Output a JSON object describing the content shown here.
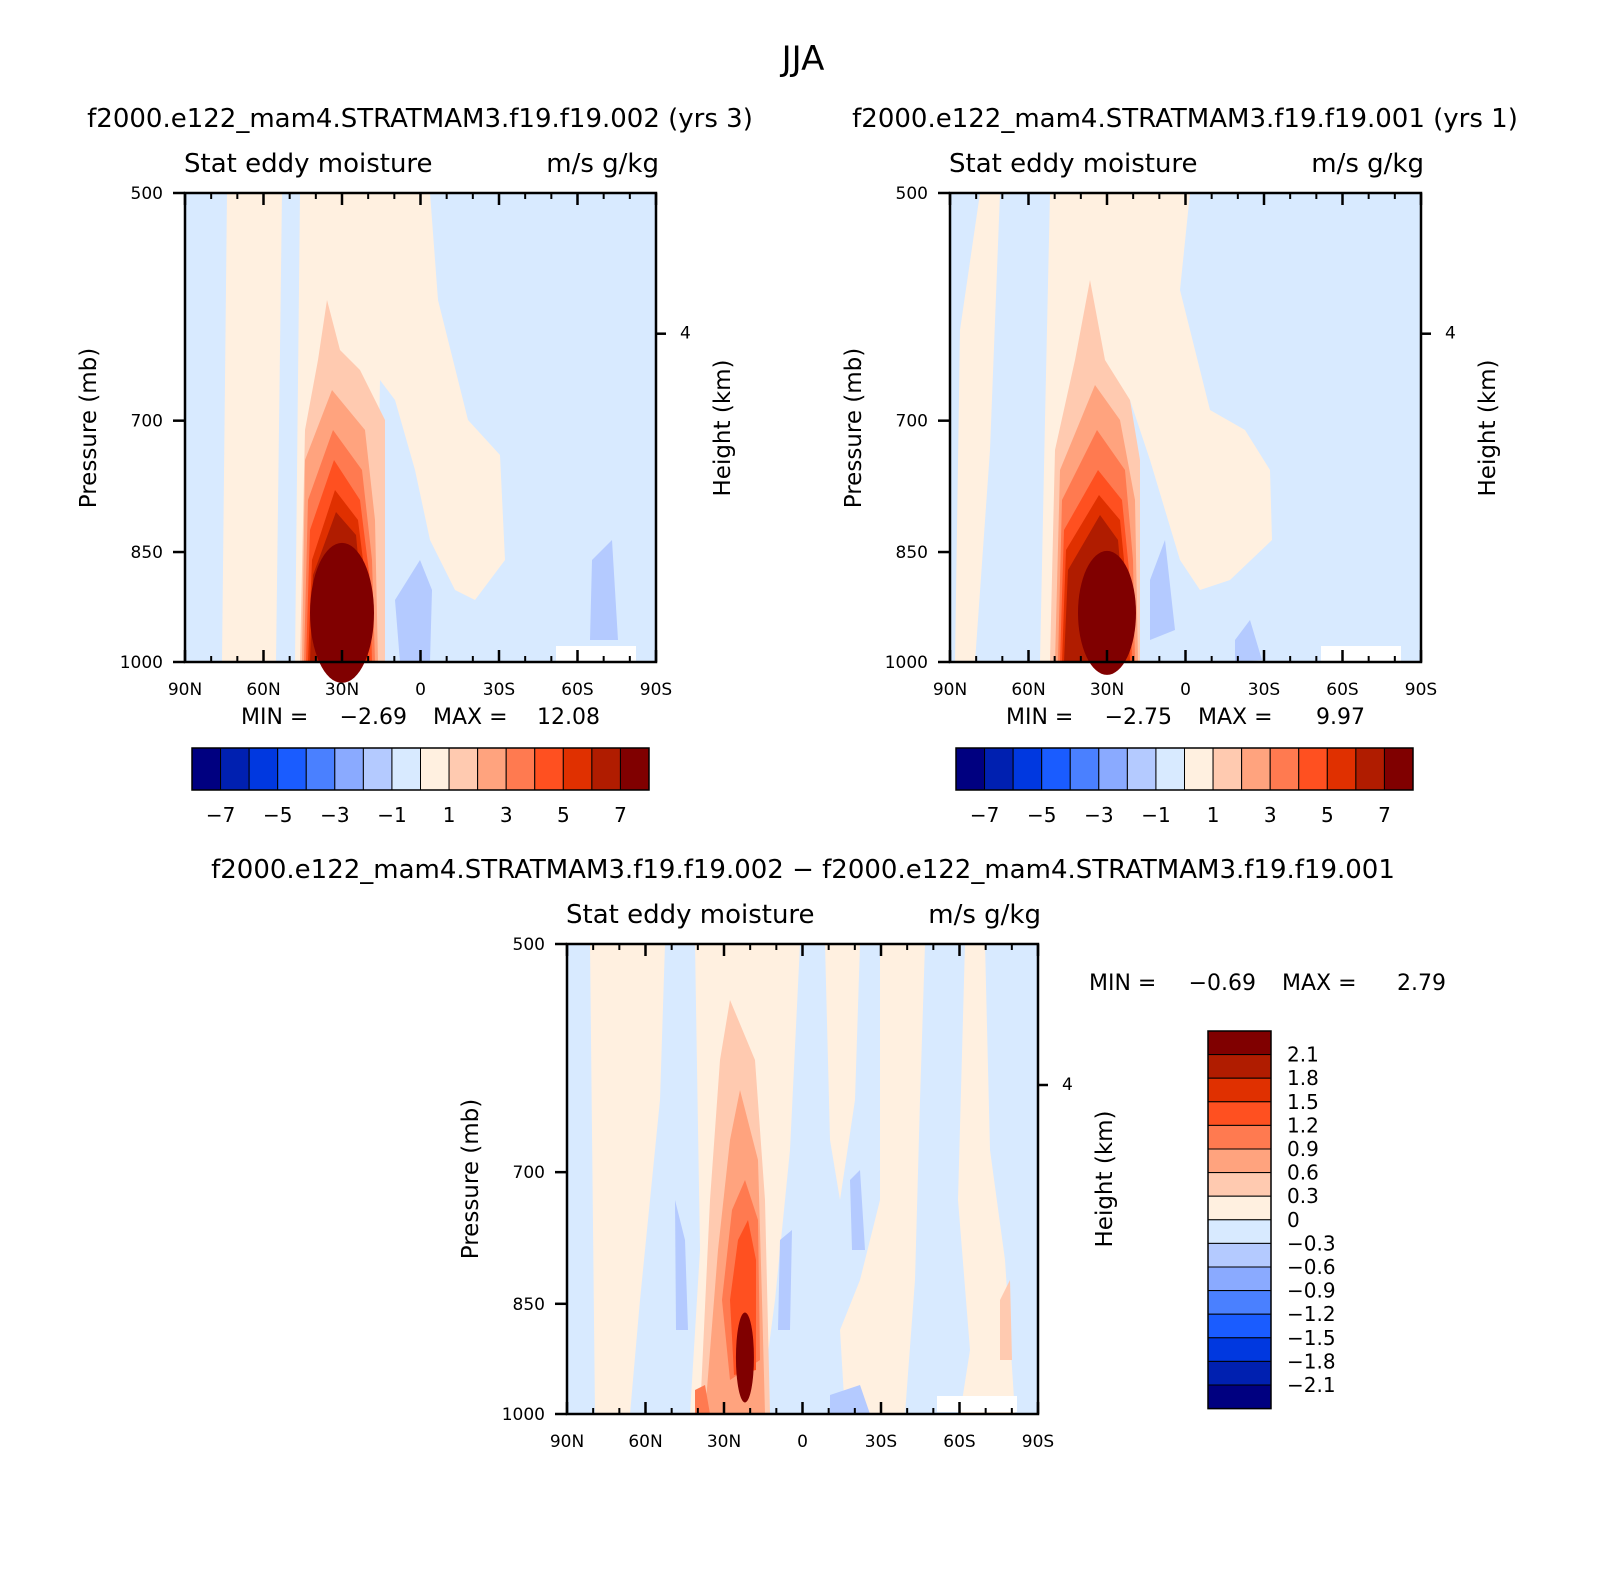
{
  "figure": {
    "season": "JJA",
    "case_a_title": "f2000.e122_mam4.STRATMAM3.f19.f19.002  (yrs  3)",
    "case_b_title": "f2000.e122_mam4.STRATMAM3.f19.f19.001  (yrs  1)",
    "diff_title": "f2000.e122_mam4.STRATMAM3.f19.f19.002  −  f2000.e122_mam4.STRATMAM3.f19.f19.001"
  },
  "chart_data": [
    {
      "id": "panel-a",
      "type": "contour",
      "variable": "Stat  eddy  moisture",
      "units": "m/s  g/kg",
      "xlabel": "",
      "ylabel": "Pressure  (mb)",
      "ylabel_right": "Height  (km)",
      "x_ticks": [
        "90N",
        "60N",
        "30N",
        "0",
        "30S",
        "60S",
        "90S"
      ],
      "y_ticks": [
        "500",
        "700",
        "850",
        "1000"
      ],
      "right_ticks": [
        "4"
      ],
      "xlim": [
        90,
        -90
      ],
      "ylim": [
        500,
        1000
      ],
      "min_label": "MIN  =",
      "min_value": "−2.69",
      "max_label": "MAX  =",
      "max_value": "12.08",
      "max_center": {
        "lat": 30,
        "p": 930
      }
    },
    {
      "id": "panel-b",
      "type": "contour",
      "variable": "Stat  eddy  moisture",
      "units": "m/s  g/kg",
      "xlabel": "",
      "ylabel": "Pressure  (mb)",
      "ylabel_right": "Height  (km)",
      "x_ticks": [
        "90N",
        "60N",
        "30N",
        "0",
        "30S",
        "60S",
        "90S"
      ],
      "y_ticks": [
        "500",
        "700",
        "850",
        "1000"
      ],
      "right_ticks": [
        "4"
      ],
      "xlim": [
        90,
        -90
      ],
      "ylim": [
        500,
        1000
      ],
      "min_label": "MIN  =",
      "min_value": "−2.75",
      "max_label": "MAX  =",
      "max_value": "9.97",
      "max_center": {
        "lat": 30,
        "p": 930
      }
    },
    {
      "id": "panel-diff",
      "type": "contour",
      "variable": "Stat  eddy  moisture",
      "units": "m/s  g/kg",
      "xlabel": "",
      "ylabel": "Pressure  (mb)",
      "ylabel_right": "Height  (km)",
      "x_ticks": [
        "90N",
        "60N",
        "30N",
        "0",
        "30S",
        "60S",
        "90S"
      ],
      "y_ticks": [
        "500",
        "700",
        "850",
        "1000"
      ],
      "right_ticks": [
        "4"
      ],
      "xlim": [
        90,
        -90
      ],
      "ylim": [
        500,
        1000
      ],
      "min_label": "MIN  =",
      "min_value": "−0.69",
      "max_label": "MAX  =",
      "max_value": "2.79",
      "max_center": {
        "lat": 22,
        "p": 920
      }
    }
  ],
  "colorbars": {
    "abs": {
      "colors": [
        "#000080",
        "#0020b0",
        "#0038e0",
        "#1a5cff",
        "#4a80ff",
        "#8aaaff",
        "#b4caff",
        "#d8eaff",
        "#fff0e0",
        "#ffcab0",
        "#ffa37e",
        "#ff7a50",
        "#ff5020",
        "#e03000",
        "#b01c00",
        "#800000"
      ],
      "labels": [
        "−7",
        "−5",
        "−3",
        "−1",
        "1",
        "3",
        "5",
        "7"
      ]
    },
    "diff": {
      "colors": [
        "#800000",
        "#b01c00",
        "#e03000",
        "#ff5020",
        "#ff7a50",
        "#ffa37e",
        "#ffcab0",
        "#fff0e0",
        "#d8eaff",
        "#b4caff",
        "#8aaaff",
        "#4a80ff",
        "#1a5cff",
        "#0038e0",
        "#0020b0",
        "#000080"
      ],
      "labels": [
        "2.1",
        "1.8",
        "1.5",
        "1.2",
        "0.9",
        "0.6",
        "0.3",
        "0",
        "−0.3",
        "−0.6",
        "−0.9",
        "−1.2",
        "−1.5",
        "−1.8",
        "−2.1"
      ]
    }
  }
}
